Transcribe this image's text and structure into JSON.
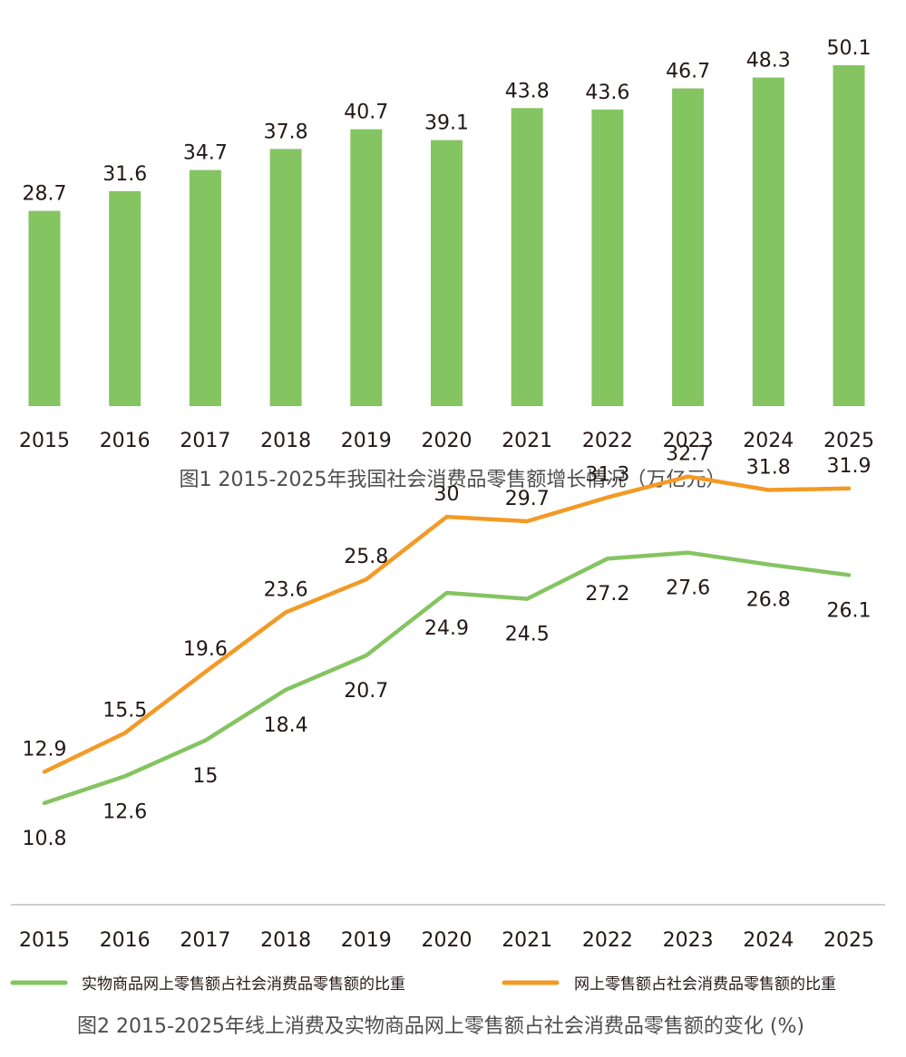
{
  "chart_data": [
    {
      "type": "bar",
      "title": "图1  2015-2025年我国社会消费品零售额增长情况（万亿元）",
      "categories": [
        "2015",
        "2016",
        "2017",
        "2018",
        "2019",
        "2020",
        "2021",
        "2022",
        "2023",
        "2024",
        "2025"
      ],
      "values": [
        28.7,
        31.6,
        34.7,
        37.8,
        40.7,
        39.1,
        43.8,
        43.6,
        46.7,
        48.3,
        50.1
      ],
      "value_labels": [
        "28.7",
        "31.6",
        "34.7",
        "37.8",
        "40.7",
        "39.1",
        "43.8",
        "43.6",
        "46.7",
        "48.3",
        "50.1"
      ],
      "xlabel": "",
      "ylabel": "",
      "ylim": [
        0,
        50.1
      ],
      "grid": false,
      "color": "#84c461"
    },
    {
      "type": "line",
      "title": "图2  2015-2025年线上消费及实物商品网上零售额占社会消费品零售额的变化 (%)",
      "categories": [
        "2015",
        "2016",
        "2017",
        "2018",
        "2019",
        "2020",
        "2021",
        "2022",
        "2023",
        "2024",
        "2025"
      ],
      "series": [
        {
          "name": "实物商品网上零售额占社会消费品零售额的比重",
          "values": [
            10.8,
            12.6,
            15,
            18.4,
            20.7,
            24.9,
            24.5,
            27.2,
            27.6,
            26.8,
            26.1
          ],
          "value_labels": [
            "10.8",
            "12.6",
            "15",
            "18.4",
            "20.7",
            "24.9",
            "24.5",
            "27.2",
            "27.6",
            "26.8",
            "26.1"
          ],
          "color": "#84c461",
          "label_position": "below"
        },
        {
          "name": "网上零售额占社会消费品零售额的比重",
          "values": [
            12.9,
            15.5,
            19.6,
            23.6,
            25.8,
            30,
            29.7,
            31.3,
            32.7,
            31.8,
            31.9
          ],
          "value_labels": [
            "12.9",
            "15.5",
            "19.6",
            "23.6",
            "25.8",
            "30",
            "29.7",
            "31.3",
            "32.7",
            "31.8",
            "31.9"
          ],
          "color": "#f39a26",
          "label_position": "above"
        }
      ],
      "xlabel": "",
      "ylabel": "",
      "ylim": [
        0,
        35
      ],
      "grid": false,
      "legend": "bottom"
    }
  ]
}
